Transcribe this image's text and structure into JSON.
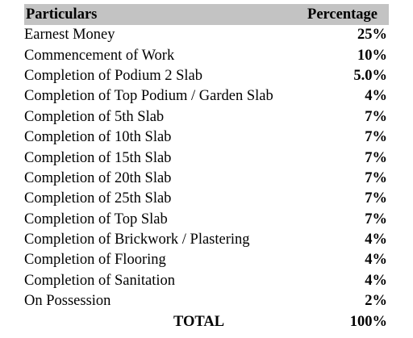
{
  "table": {
    "headers": {
      "particulars": "Particulars",
      "percentage": "Percentage"
    },
    "rows": [
      {
        "particular": "Earnest Money",
        "percentage": "25%"
      },
      {
        "particular": "Commencement of Work",
        "percentage": "10%"
      },
      {
        "particular": "Completion of Podium 2 Slab",
        "percentage": "5.0%"
      },
      {
        "particular": "Completion of Top Podium / Garden Slab",
        "percentage": "4%"
      },
      {
        "particular": "Completion of 5th Slab",
        "percentage": "7%"
      },
      {
        "particular": "Completion of 10th Slab",
        "percentage": "7%"
      },
      {
        "particular": "Completion of 15th Slab",
        "percentage": "7%"
      },
      {
        "particular": "Completion of 20th Slab",
        "percentage": "7%"
      },
      {
        "particular": "Completion of 25th Slab",
        "percentage": "7%"
      },
      {
        "particular": "Completion of Top Slab",
        "percentage": "7%"
      },
      {
        "particular": "Completion of Brickwork / Plastering",
        "percentage": "4%"
      },
      {
        "particular": "Completion of Flooring",
        "percentage": "4%"
      },
      {
        "particular": "Completion of Sanitation",
        "percentage": "4%"
      },
      {
        "particular": "On Possession",
        "percentage": "2%"
      }
    ],
    "total": {
      "label": "TOTAL",
      "percentage": "100%"
    }
  }
}
